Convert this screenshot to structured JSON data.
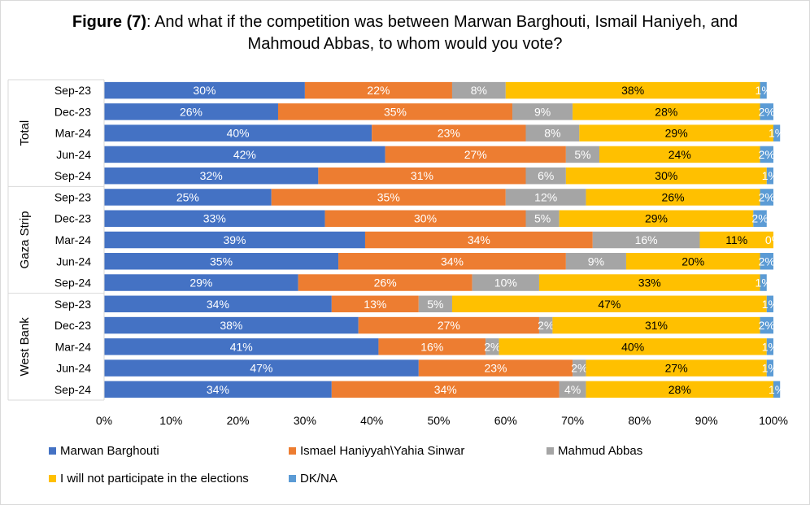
{
  "title": {
    "bold": "Figure (7)",
    "text": ": And what if the competition was between Marwan Barghouti, Ismail Haniyeh, and Mahmoud Abbas, to whom would you vote?"
  },
  "chart_data": {
    "type": "bar",
    "orientation": "horizontal",
    "stacked": "percent",
    "groups": [
      {
        "label": "Total",
        "categories": [
          "Sep-23",
          "Dec-23",
          "Mar-24",
          "Jun-24",
          "Sep-24"
        ]
      },
      {
        "label": "Gaza Strip",
        "categories": [
          "Sep-23",
          "Dec-23",
          "Mar-24",
          "Jun-24",
          "Sep-24"
        ]
      },
      {
        "label": "West Bank",
        "categories": [
          "Sep-23",
          "Dec-23",
          "Mar-24",
          "Jun-24",
          "Sep-24"
        ]
      }
    ],
    "series": [
      {
        "name": "Marwan Barghouti",
        "color": "#4472c4",
        "label_color": "#ffffff",
        "values": [
          30,
          26,
          40,
          42,
          32,
          25,
          33,
          39,
          35,
          29,
          34,
          38,
          41,
          47,
          34
        ]
      },
      {
        "name": "Ismael Haniyyah\\Yahia Sinwar",
        "color": "#ed7d31",
        "label_color": "#ffffff",
        "values": [
          22,
          35,
          23,
          27,
          31,
          35,
          30,
          34,
          34,
          26,
          13,
          27,
          16,
          23,
          34
        ]
      },
      {
        "name": "Mahmud Abbas",
        "color": "#a5a5a5",
        "label_color": "#ffffff",
        "values": [
          8,
          9,
          8,
          5,
          6,
          12,
          5,
          16,
          9,
          10,
          5,
          2,
          2,
          2,
          4
        ]
      },
      {
        "name": "I will not participate in the elections",
        "color": "#ffc000",
        "label_color": "#000000",
        "values": [
          38,
          28,
          29,
          24,
          30,
          26,
          29,
          11,
          20,
          33,
          47,
          31,
          40,
          27,
          28
        ]
      },
      {
        "name": "DK/NA",
        "color": "#5b9bd5",
        "label_color": "#ffffff",
        "values": [
          1,
          2,
          1,
          2,
          1,
          2,
          2,
          0,
          2,
          1,
          1,
          2,
          1,
          1,
          1
        ]
      }
    ],
    "x_ticks": [
      "0%",
      "10%",
      "20%",
      "30%",
      "40%",
      "50%",
      "60%",
      "70%",
      "80%",
      "90%",
      "100%"
    ],
    "xlim": [
      0,
      100
    ],
    "grid": false,
    "legend_position": "bottom"
  }
}
